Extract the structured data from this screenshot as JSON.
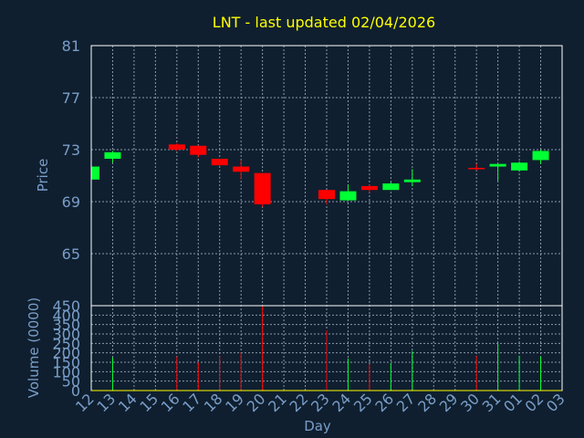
{
  "colors": {
    "background": "#0f1f2f",
    "title": "#ffff00",
    "axis_text": "#7a9ec8",
    "axis_title": "#7a9ec8",
    "frame": "#ffffff",
    "grid": "#8a9aaa",
    "up": "#00ff33",
    "down": "#ff0000",
    "zero_line": "#ffff00"
  },
  "chart_data": {
    "type": "candlestick",
    "title": "LNT - last updated 02/04/2026",
    "price_ylabel": "Price",
    "volume_ylabel": "Volume (0000)",
    "xlabel": "Day",
    "x_ticks": [
      "12",
      "13",
      "14",
      "15",
      "16",
      "17",
      "18",
      "19",
      "20",
      "21",
      "22",
      "23",
      "24",
      "25",
      "26",
      "27",
      "28",
      "29",
      "30",
      "31",
      "01",
      "02",
      "03"
    ],
    "price_yticks": [
      "81",
      "77",
      "73",
      "69",
      "65"
    ],
    "price_ylim": [
      61,
      81
    ],
    "volume_yticks": [
      "450",
      "400",
      "350",
      "300",
      "250",
      "200",
      "150",
      "100",
      "50",
      "0"
    ],
    "volume_ylim": [
      0,
      450
    ],
    "grid": true,
    "candles": [
      {
        "day": "12",
        "open": 70.7,
        "high": 71.7,
        "low": 70.7,
        "close": 71.7,
        "volume": 0
      },
      {
        "day": "13",
        "open": 72.3,
        "high": 72.9,
        "low": 72.0,
        "close": 72.8,
        "volume": 175
      },
      {
        "day": "16",
        "open": 73.4,
        "high": 73.5,
        "low": 72.9,
        "close": 73.0,
        "volume": 180
      },
      {
        "day": "17",
        "open": 73.3,
        "high": 73.3,
        "low": 72.4,
        "close": 72.6,
        "volume": 150
      },
      {
        "day": "18",
        "open": 72.3,
        "high": 72.3,
        "low": 71.7,
        "close": 71.8,
        "volume": 185
      },
      {
        "day": "19",
        "open": 71.7,
        "high": 72.2,
        "low": 70.7,
        "close": 71.3,
        "volume": 200
      },
      {
        "day": "20",
        "open": 71.2,
        "high": 71.2,
        "low": 68.6,
        "close": 68.8,
        "volume": 450
      },
      {
        "day": "23",
        "open": 69.9,
        "high": 69.9,
        "low": 68.8,
        "close": 69.2,
        "volume": 320
      },
      {
        "day": "24",
        "open": 69.1,
        "high": 70.3,
        "low": 69.1,
        "close": 69.8,
        "volume": 170
      },
      {
        "day": "25",
        "open": 70.2,
        "high": 70.3,
        "low": 69.7,
        "close": 69.9,
        "volume": 140
      },
      {
        "day": "26",
        "open": 69.9,
        "high": 70.5,
        "low": 69.9,
        "close": 70.4,
        "volume": 145
      },
      {
        "day": "27",
        "open": 70.5,
        "high": 71.5,
        "low": 70.2,
        "close": 70.7,
        "volume": 210
      },
      {
        "day": "30",
        "open": 71.6,
        "high": 71.9,
        "low": 71.4,
        "close": 71.5,
        "volume": 185
      },
      {
        "day": "31",
        "open": 71.7,
        "high": 71.9,
        "low": 70.6,
        "close": 71.9,
        "volume": 250
      },
      {
        "day": "01",
        "open": 71.4,
        "high": 72.1,
        "low": 71.3,
        "close": 72.0,
        "volume": 185
      },
      {
        "day": "02",
        "open": 72.2,
        "high": 73.0,
        "low": 71.9,
        "close": 72.9,
        "volume": 180
      }
    ]
  }
}
